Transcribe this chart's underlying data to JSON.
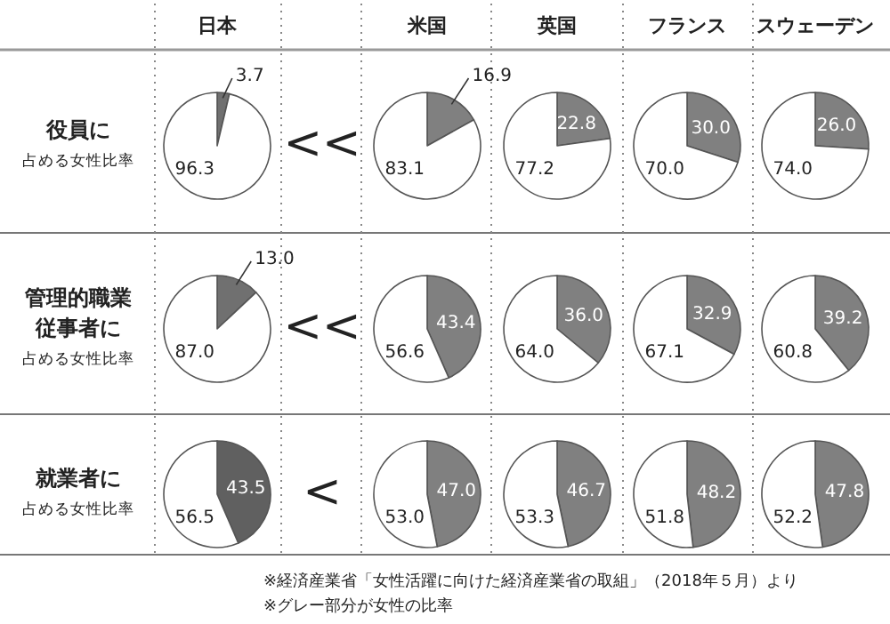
{
  "chart_data": [
    {
      "type": "other",
      "annotations": [
        "日本",
        "米国",
        "英国",
        "フランス",
        "スウェーデン",
        "役員に",
        "占める女性比率",
        "管理的職業",
        "従事者に",
        "占める女性比率",
        "就業者に",
        "占める女性比率",
        "<<",
        "<<",
        "<",
        "※経済産業省「女性活躍に向けた経済産業省の取組」（2018年５月）より",
        "※グレー部分が女性の比率"
      ]
    },
    {
      "type": "pie",
      "categories": [
        null,
        null
      ],
      "values": [
        3.7,
        96.3
      ],
      "value_labels": [
        "3.7",
        "96.3"
      ],
      "colors": [
        "#707070",
        "#ffffff"
      ]
    },
    {
      "type": "pie",
      "categories": [
        null,
        null
      ],
      "values": [
        16.9,
        83.1
      ],
      "value_labels": [
        "16.9",
        "83.1"
      ],
      "colors": [
        "#808080",
        "#ffffff"
      ]
    },
    {
      "type": "pie",
      "categories": [
        null,
        null
      ],
      "values": [
        22.8,
        77.2
      ],
      "value_labels": [
        "22.8",
        "77.2"
      ],
      "colors": [
        "#808080",
        "#ffffff"
      ]
    },
    {
      "type": "pie",
      "categories": [
        null,
        null
      ],
      "values": [
        30.0,
        70.0
      ],
      "value_labels": [
        "30.0",
        "70.0"
      ],
      "colors": [
        "#808080",
        "#ffffff"
      ]
    },
    {
      "type": "pie",
      "categories": [
        null,
        null
      ],
      "values": [
        26.0,
        74.0
      ],
      "value_labels": [
        "26.0",
        "74.0"
      ],
      "colors": [
        "#808080",
        "#ffffff"
      ]
    },
    {
      "type": "pie",
      "categories": [
        null,
        null
      ],
      "values": [
        13.0,
        87.0
      ],
      "value_labels": [
        "13.0",
        "87.0"
      ],
      "colors": [
        "#707070",
        "#ffffff"
      ]
    },
    {
      "type": "pie",
      "categories": [
        null,
        null
      ],
      "values": [
        43.4,
        56.6
      ],
      "value_labels": [
        "43.4",
        "56.6"
      ],
      "colors": [
        "#808080",
        "#ffffff"
      ]
    },
    {
      "type": "pie",
      "categories": [
        null,
        null
      ],
      "values": [
        36.0,
        64.0
      ],
      "value_labels": [
        "36.0",
        "64.0"
      ],
      "colors": [
        "#808080",
        "#ffffff"
      ]
    },
    {
      "type": "pie",
      "categories": [
        null,
        null
      ],
      "values": [
        32.9,
        67.1
      ],
      "value_labels": [
        "32.9",
        "67.1"
      ],
      "colors": [
        "#808080",
        "#ffffff"
      ]
    },
    {
      "type": "pie",
      "categories": [
        null,
        null
      ],
      "values": [
        39.2,
        60.8
      ],
      "value_labels": [
        "39.2",
        "60.8"
      ],
      "colors": [
        "#808080",
        "#ffffff"
      ]
    },
    {
      "type": "pie",
      "categories": [
        null,
        null
      ],
      "values": [
        43.5,
        56.5
      ],
      "value_labels": [
        "43.5",
        "56.5"
      ],
      "colors": [
        "#606060",
        "#ffffff"
      ]
    },
    {
      "type": "pie",
      "categories": [
        null,
        null
      ],
      "values": [
        47.0,
        53.0
      ],
      "value_labels": [
        "47.0",
        "53.0"
      ],
      "colors": [
        "#808080",
        "#ffffff"
      ]
    },
    {
      "type": "pie",
      "categories": [
        null,
        null
      ],
      "values": [
        46.7,
        53.3
      ],
      "value_labels": [
        "46.7",
        "53.3"
      ],
      "colors": [
        "#808080",
        "#ffffff"
      ]
    },
    {
      "type": "pie",
      "categories": [
        null,
        null
      ],
      "values": [
        48.2,
        51.8
      ],
      "value_labels": [
        "48.2",
        "51.8"
      ],
      "colors": [
        "#808080",
        "#ffffff"
      ]
    },
    {
      "type": "pie",
      "categories": [
        null,
        null
      ],
      "values": [
        47.8,
        52.2
      ],
      "value_labels": [
        "47.8",
        "52.2"
      ],
      "colors": [
        "#808080",
        "#ffffff"
      ]
    }
  ]
}
